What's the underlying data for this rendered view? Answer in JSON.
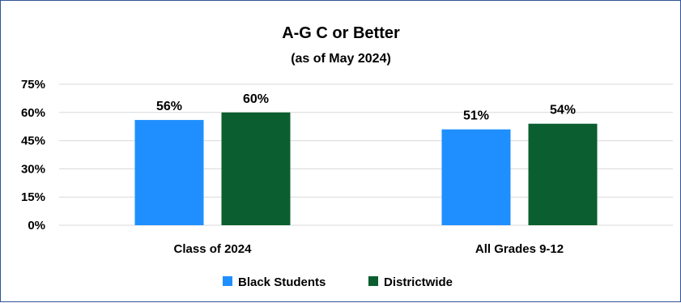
{
  "chart_data": {
    "type": "bar",
    "title": "A-G C or Better",
    "subtitle": "(as of May 2024)",
    "categories": [
      "Class of 2024",
      "All Grades 9-12"
    ],
    "series": [
      {
        "name": "Black Students",
        "values": [
          56,
          51
        ],
        "labels": [
          "56%",
          "51%"
        ],
        "color": "#1f8fff"
      },
      {
        "name": "Districtwide",
        "values": [
          60,
          54
        ],
        "labels": [
          "60%",
          "54%"
        ],
        "color": "#0b5e2f"
      }
    ],
    "yticks": [
      0,
      15,
      30,
      45,
      60,
      75
    ],
    "ytick_labels": [
      "0%",
      "15%",
      "30%",
      "45%",
      "60%",
      "75%"
    ],
    "ylim": [
      0,
      75
    ],
    "grid": true,
    "legend_position": "bottom",
    "xlabel": "",
    "ylabel": ""
  },
  "colors": {
    "border": "#2f5597",
    "gridline": "#d9d9d9"
  }
}
